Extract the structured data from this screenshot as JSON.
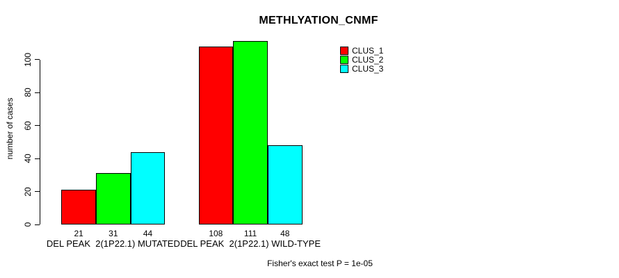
{
  "title": "METHLYATION_CNMF",
  "chart_data": {
    "type": "bar",
    "title": "METHLYATION_CNMF",
    "categories": [
      "DEL PEAK  2(1P22.1) MUTATED",
      "DEL PEAK  2(1P22.1) WILD-TYPE"
    ],
    "series": [
      {
        "name": "CLUS_1",
        "color": "#FF0000",
        "values": [
          21,
          108
        ]
      },
      {
        "name": "CLUS_2",
        "color": "#00FF00",
        "values": [
          31,
          111
        ]
      },
      {
        "name": "CLUS_3",
        "color": "#00FFFF",
        "values": [
          44,
          48
        ]
      }
    ],
    "bar_value_labels": [
      [
        "21",
        "31",
        "44"
      ],
      [
        "108",
        "111",
        "48"
      ]
    ],
    "xlabel": "",
    "ylabel": "number of cases",
    "yticks": [
      0,
      20,
      40,
      60,
      80,
      100
    ],
    "ylim": [
      0,
      115
    ],
    "grid": false,
    "legend_position": "top-right",
    "legend_entries": [
      "CLUS_1",
      "CLUS_2",
      "CLUS_3"
    ],
    "annotation": "Fisher's exact test P = 1e-05"
  },
  "colors": {
    "clus_1": "#FF0000",
    "clus_2": "#00FF00",
    "clus_3": "#00FFFF",
    "axis": "#000000",
    "background": "#FFFFFF"
  }
}
